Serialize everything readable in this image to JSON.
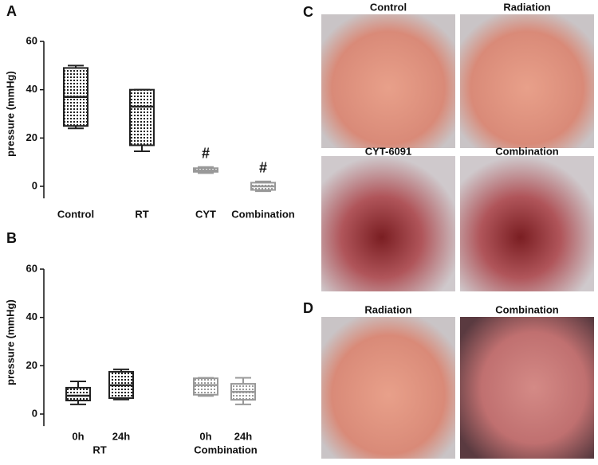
{
  "chart_data": [
    {
      "type": "box",
      "panel": "A",
      "ylabel": "pressure (mmHg)",
      "categories": [
        "Control",
        "RT",
        "CYT",
        "Combination"
      ],
      "boxes": [
        {
          "min": 24,
          "q1": 25,
          "median": 37,
          "q3": 49,
          "max": 50
        },
        {
          "min": 14.5,
          "q1": 17,
          "median": 33,
          "q3": 40,
          "max": 40
        },
        {
          "min": 5.5,
          "q1": 6,
          "median": 6.5,
          "q3": 7.5,
          "max": 8
        },
        {
          "min": -2,
          "q1": -1.5,
          "median": 0,
          "q3": 1.5,
          "max": 2
        }
      ],
      "colors": [
        "#222222",
        "#222222",
        "#999999",
        "#999999"
      ],
      "annotations": [
        null,
        null,
        "#",
        "#"
      ],
      "ylim": [
        -5,
        60
      ],
      "yticks": [
        0,
        20,
        40,
        60
      ]
    },
    {
      "type": "box",
      "panel": "B",
      "ylabel": "pressure (mmHg)",
      "categories": [
        "0h",
        "24h",
        "0h",
        "24h"
      ],
      "groups": [
        "RT",
        "Combination"
      ],
      "boxes": [
        {
          "min": 4,
          "q1": 5.6,
          "median": 7.6,
          "q3": 10.9,
          "max": 13.5
        },
        {
          "min": 6,
          "q1": 6.6,
          "median": 11.9,
          "q3": 17.5,
          "max": 18.5
        },
        {
          "min": 7.5,
          "q1": 8,
          "median": 12,
          "q3": 14.8,
          "max": 15
        },
        {
          "min": 4,
          "q1": 5.9,
          "median": 9.2,
          "q3": 12.5,
          "max": 15
        }
      ],
      "colors": [
        "#222222",
        "#222222",
        "#999999",
        "#999999"
      ],
      "ylim": [
        -5,
        60
      ],
      "yticks": [
        0,
        20,
        40,
        60
      ]
    }
  ],
  "photos": {
    "panel_c": "C",
    "panel_d": "D",
    "c_labels": [
      "Control",
      "Radiation",
      "CYT-6091",
      "Combination"
    ],
    "d_labels": [
      "Radiation",
      "Combination"
    ]
  }
}
